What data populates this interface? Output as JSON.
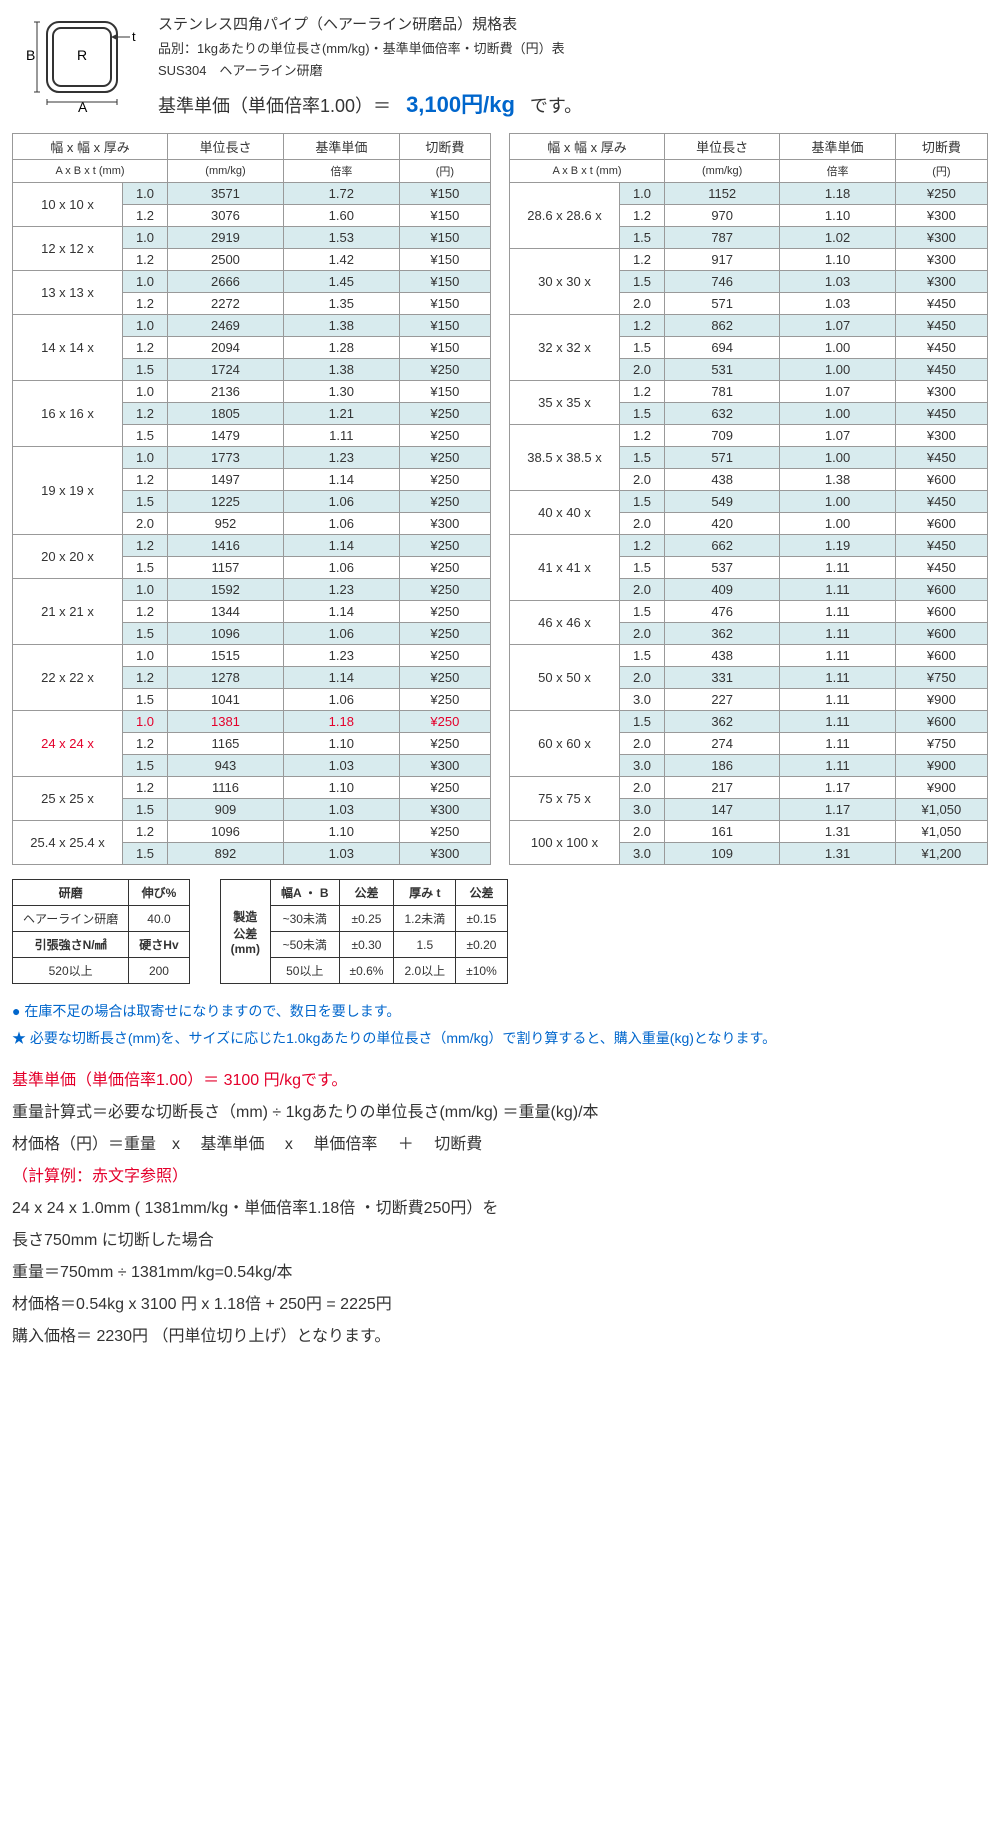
{
  "header": {
    "title": "ステンレス四角パイプ（ヘアーライン研磨品）規格表",
    "subtitle": "品別：1kgあたりの単位長さ(mm/kg)・基準単価倍率・切断費（円）表",
    "material": "SUS304　ヘアーライン研磨",
    "base_price_label_left": "基準単価（単価倍率1.00）＝",
    "base_price_value": "3,100円/kg",
    "base_price_label_right": "です。"
  },
  "diagram": {
    "A": "A",
    "B": "B",
    "R": "R",
    "t": "t"
  },
  "columns": {
    "size_h": "幅 x 幅 x 厚み",
    "size_s": "A x B x  t  (mm)",
    "len_h": "単位長さ",
    "len_s": "(mm/kg)",
    "rate_h": "基準単価",
    "rate_s": "倍率",
    "cut_h": "切断費",
    "cut_s": "(円)"
  },
  "left": [
    {
      "size": "10 x 10 x",
      "t": "1.0",
      "len": "3571",
      "rate": "1.72",
      "cut": "¥150",
      "shade": true,
      "first": true
    },
    {
      "size": "",
      "t": "1.2",
      "len": "3076",
      "rate": "1.60",
      "cut": "¥150",
      "shade": false
    },
    {
      "size": "12 x 12 x",
      "t": "1.0",
      "len": "2919",
      "rate": "1.53",
      "cut": "¥150",
      "shade": true,
      "first": true
    },
    {
      "size": "",
      "t": "1.2",
      "len": "2500",
      "rate": "1.42",
      "cut": "¥150",
      "shade": false
    },
    {
      "size": "13 x 13 x",
      "t": "1.0",
      "len": "2666",
      "rate": "1.45",
      "cut": "¥150",
      "shade": true,
      "first": true
    },
    {
      "size": "",
      "t": "1.2",
      "len": "2272",
      "rate": "1.35",
      "cut": "¥150",
      "shade": false
    },
    {
      "size": "14 x 14 x",
      "t": "1.0",
      "len": "2469",
      "rate": "1.38",
      "cut": "¥150",
      "shade": true,
      "first": true
    },
    {
      "size": "",
      "t": "1.2",
      "len": "2094",
      "rate": "1.28",
      "cut": "¥150",
      "shade": false
    },
    {
      "size": "",
      "t": "1.5",
      "len": "1724",
      "rate": "1.38",
      "cut": "¥250",
      "shade": true
    },
    {
      "size": "16 x 16 x",
      "t": "1.0",
      "len": "2136",
      "rate": "1.30",
      "cut": "¥150",
      "shade": false,
      "first": true
    },
    {
      "size": "",
      "t": "1.2",
      "len": "1805",
      "rate": "1.21",
      "cut": "¥250",
      "shade": true
    },
    {
      "size": "",
      "t": "1.5",
      "len": "1479",
      "rate": "1.11",
      "cut": "¥250",
      "shade": false
    },
    {
      "size": "19 x 19 x",
      "t": "1.0",
      "len": "1773",
      "rate": "1.23",
      "cut": "¥250",
      "shade": true,
      "first": true
    },
    {
      "size": "",
      "t": "1.2",
      "len": "1497",
      "rate": "1.14",
      "cut": "¥250",
      "shade": false
    },
    {
      "size": "",
      "t": "1.5",
      "len": "1225",
      "rate": "1.06",
      "cut": "¥250",
      "shade": true
    },
    {
      "size": "",
      "t": "2.0",
      "len": "952",
      "rate": "1.06",
      "cut": "¥300",
      "shade": false
    },
    {
      "size": "20 x 20 x",
      "t": "1.2",
      "len": "1416",
      "rate": "1.14",
      "cut": "¥250",
      "shade": true,
      "first": true
    },
    {
      "size": "",
      "t": "1.5",
      "len": "1157",
      "rate": "1.06",
      "cut": "¥250",
      "shade": false
    },
    {
      "size": "21 x 21 x",
      "t": "1.0",
      "len": "1592",
      "rate": "1.23",
      "cut": "¥250",
      "shade": true,
      "first": true
    },
    {
      "size": "",
      "t": "1.2",
      "len": "1344",
      "rate": "1.14",
      "cut": "¥250",
      "shade": false
    },
    {
      "size": "",
      "t": "1.5",
      "len": "1096",
      "rate": "1.06",
      "cut": "¥250",
      "shade": true
    },
    {
      "size": "22 x 22 x",
      "t": "1.0",
      "len": "1515",
      "rate": "1.23",
      "cut": "¥250",
      "shade": false,
      "first": true
    },
    {
      "size": "",
      "t": "1.2",
      "len": "1278",
      "rate": "1.14",
      "cut": "¥250",
      "shade": true
    },
    {
      "size": "",
      "t": "1.5",
      "len": "1041",
      "rate": "1.06",
      "cut": "¥250",
      "shade": false
    },
    {
      "size": "24 x 24 x",
      "t": "1.0",
      "len": "1381",
      "rate": "1.18",
      "cut": "¥250",
      "shade": true,
      "first": true,
      "red": true
    },
    {
      "size": "",
      "t": "1.2",
      "len": "1165",
      "rate": "1.10",
      "cut": "¥250",
      "shade": false
    },
    {
      "size": "",
      "t": "1.5",
      "len": "943",
      "rate": "1.03",
      "cut": "¥300",
      "shade": true
    },
    {
      "size": "25 x 25 x",
      "t": "1.2",
      "len": "1116",
      "rate": "1.10",
      "cut": "¥250",
      "shade": false,
      "first": true
    },
    {
      "size": "",
      "t": "1.5",
      "len": "909",
      "rate": "1.03",
      "cut": "¥300",
      "shade": true
    },
    {
      "size": "25.4 x 25.4 x",
      "t": "1.2",
      "len": "1096",
      "rate": "1.10",
      "cut": "¥250",
      "shade": false,
      "first": true
    },
    {
      "size": "",
      "t": "1.5",
      "len": "892",
      "rate": "1.03",
      "cut": "¥300",
      "shade": true
    }
  ],
  "right": [
    {
      "size": "28.6 x 28.6 x",
      "t": "1.0",
      "len": "1152",
      "rate": "1.18",
      "cut": "¥250",
      "shade": true,
      "first": true
    },
    {
      "size": "",
      "t": "1.2",
      "len": "970",
      "rate": "1.10",
      "cut": "¥300",
      "shade": false
    },
    {
      "size": "",
      "t": "1.5",
      "len": "787",
      "rate": "1.02",
      "cut": "¥300",
      "shade": true
    },
    {
      "size": "30 x 30 x",
      "t": "1.2",
      "len": "917",
      "rate": "1.10",
      "cut": "¥300",
      "shade": false,
      "first": true
    },
    {
      "size": "",
      "t": "1.5",
      "len": "746",
      "rate": "1.03",
      "cut": "¥300",
      "shade": true
    },
    {
      "size": "",
      "t": "2.0",
      "len": "571",
      "rate": "1.03",
      "cut": "¥450",
      "shade": false
    },
    {
      "size": "32 x 32 x",
      "t": "1.2",
      "len": "862",
      "rate": "1.07",
      "cut": "¥450",
      "shade": true,
      "first": true
    },
    {
      "size": "",
      "t": "1.5",
      "len": "694",
      "rate": "1.00",
      "cut": "¥450",
      "shade": false
    },
    {
      "size": "",
      "t": "2.0",
      "len": "531",
      "rate": "1.00",
      "cut": "¥450",
      "shade": true
    },
    {
      "size": "35 x 35 x",
      "t": "1.2",
      "len": "781",
      "rate": "1.07",
      "cut": "¥300",
      "shade": false,
      "first": true
    },
    {
      "size": "",
      "t": "1.5",
      "len": "632",
      "rate": "1.00",
      "cut": "¥450",
      "shade": true
    },
    {
      "size": "38.5 x 38.5 x",
      "t": "1.2",
      "len": "709",
      "rate": "1.07",
      "cut": "¥300",
      "shade": false,
      "first": true
    },
    {
      "size": "",
      "t": "1.5",
      "len": "571",
      "rate": "1.00",
      "cut": "¥450",
      "shade": true
    },
    {
      "size": "",
      "t": "2.0",
      "len": "438",
      "rate": "1.38",
      "cut": "¥600",
      "shade": false
    },
    {
      "size": "40 x 40 x",
      "t": "1.5",
      "len": "549",
      "rate": "1.00",
      "cut": "¥450",
      "shade": true,
      "first": true
    },
    {
      "size": "",
      "t": "2.0",
      "len": "420",
      "rate": "1.00",
      "cut": "¥600",
      "shade": false
    },
    {
      "size": "41 x 41 x",
      "t": "1.2",
      "len": "662",
      "rate": "1.19",
      "cut": "¥450",
      "shade": true,
      "first": true
    },
    {
      "size": "",
      "t": "1.5",
      "len": "537",
      "rate": "1.11",
      "cut": "¥450",
      "shade": false
    },
    {
      "size": "",
      "t": "2.0",
      "len": "409",
      "rate": "1.11",
      "cut": "¥600",
      "shade": true
    },
    {
      "size": "46 x 46 x",
      "t": "1.5",
      "len": "476",
      "rate": "1.11",
      "cut": "¥600",
      "shade": false,
      "first": true
    },
    {
      "size": "",
      "t": "2.0",
      "len": "362",
      "rate": "1.11",
      "cut": "¥600",
      "shade": true
    },
    {
      "size": "50 x 50 x",
      "t": "1.5",
      "len": "438",
      "rate": "1.11",
      "cut": "¥600",
      "shade": false,
      "first": true
    },
    {
      "size": "",
      "t": "2.0",
      "len": "331",
      "rate": "1.11",
      "cut": "¥750",
      "shade": true
    },
    {
      "size": "",
      "t": "3.0",
      "len": "227",
      "rate": "1.11",
      "cut": "¥900",
      "shade": false
    },
    {
      "size": "60 x 60 x",
      "t": "1.5",
      "len": "362",
      "rate": "1.11",
      "cut": "¥600",
      "shade": true,
      "first": true
    },
    {
      "size": "",
      "t": "2.0",
      "len": "274",
      "rate": "1.11",
      "cut": "¥750",
      "shade": false
    },
    {
      "size": "",
      "t": "3.0",
      "len": "186",
      "rate": "1.11",
      "cut": "¥900",
      "shade": true
    },
    {
      "size": "75 x 75 x",
      "t": "2.0",
      "len": "217",
      "rate": "1.17",
      "cut": "¥900",
      "shade": false,
      "first": true
    },
    {
      "size": "",
      "t": "3.0",
      "len": "147",
      "rate": "1.17",
      "cut": "¥1,050",
      "shade": true
    },
    {
      "size": "100 x 100 x",
      "t": "2.0",
      "len": "161",
      "rate": "1.31",
      "cut": "¥1,050",
      "shade": false,
      "first": true
    },
    {
      "size": "",
      "t": "3.0",
      "len": "109",
      "rate": "1.31",
      "cut": "¥1,200",
      "shade": true
    }
  ],
  "mech": {
    "h1": "研磨",
    "h2": "伸び%",
    "r1a": "ヘアーライン研磨",
    "r1b": "40.0",
    "h3": "引張強さN/㎟",
    "h4": "硬さHv",
    "r2a": "520以上",
    "r2b": "200"
  },
  "tol": {
    "label": "製造\n公差\n(mm)",
    "h1": "幅A ・ B",
    "h2": "公差",
    "h3": "厚み t",
    "h4": "公差",
    "rows": [
      [
        "~30未満",
        "±0.25",
        "1.2未満",
        "±0.15"
      ],
      [
        "~50未満",
        "±0.30",
        "1.5",
        "±0.20"
      ],
      [
        "50以上",
        "±0.6%",
        "2.0以上",
        "±10%"
      ]
    ]
  },
  "notes": {
    "n1": "● 在庫不足の場合は取寄せになりますので、数日を要します。",
    "n2": "★ 必要な切断長さ(mm)を、サイズに応じた1.0kgあたりの単位長さ（mm/kg）で割り算すると、購入重量(kg)となります。"
  },
  "formula": {
    "l1": "基準単価（単価倍率1.00）＝ 3100 円/kgです。",
    "l2": "重量計算式＝必要な切断長さ（mm) ÷ 1kgあたりの単位長さ(mm/kg) ＝重量(kg)/本",
    "l3": "材価格（円）＝重量　x　 基準単価　 x　 単価倍率　 ＋　 切断費",
    "l4": "（計算例：赤文字参照）",
    "l5": "24  x  24  x 1.0mm ( 1381mm/kg・単価倍率1.18倍 ・切断費250円）を",
    "l6": "長さ750mm に切断した場合",
    "l7": "重量＝750mm ÷ 1381mm/kg=0.54kg/本",
    "l8": "材価格＝0.54kg x 3100 円 x 1.18倍 + 250円 = 2225円",
    "l9": "購入価格＝ 2230円 （円単位切り上げ）となります。"
  }
}
